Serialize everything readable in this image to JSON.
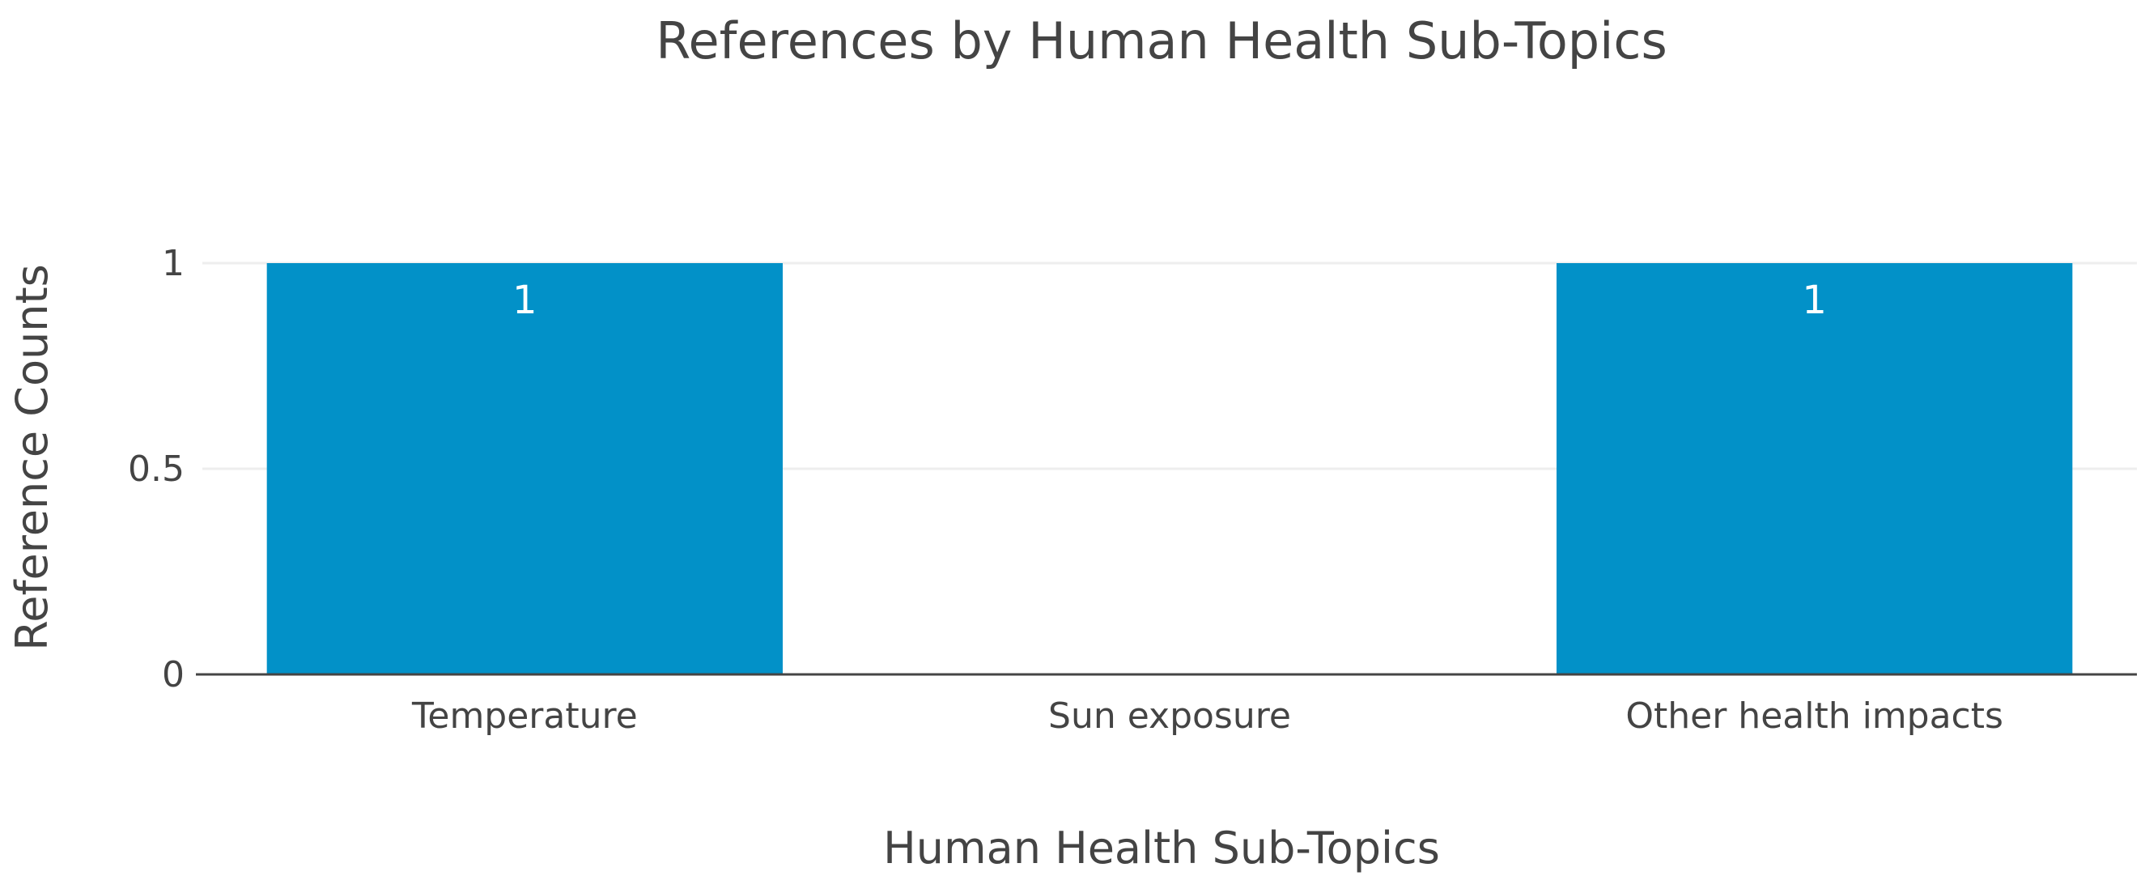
{
  "chart_data": {
    "type": "bar",
    "title": "References by Human Health Sub-Topics",
    "xlabel": "Human Health Sub-Topics",
    "ylabel": "Reference Counts",
    "categories": [
      "Temperature",
      "Sun exposure",
      "Other health impacts"
    ],
    "values": [
      1,
      0,
      1
    ],
    "data_labels": [
      "1",
      "",
      "1"
    ],
    "ylim": [
      0,
      1
    ],
    "yticks": [
      0,
      0.5,
      1
    ],
    "ytick_labels": [
      "0",
      "0.5",
      "1"
    ],
    "grid": true,
    "bar_color": "#0291C8"
  }
}
